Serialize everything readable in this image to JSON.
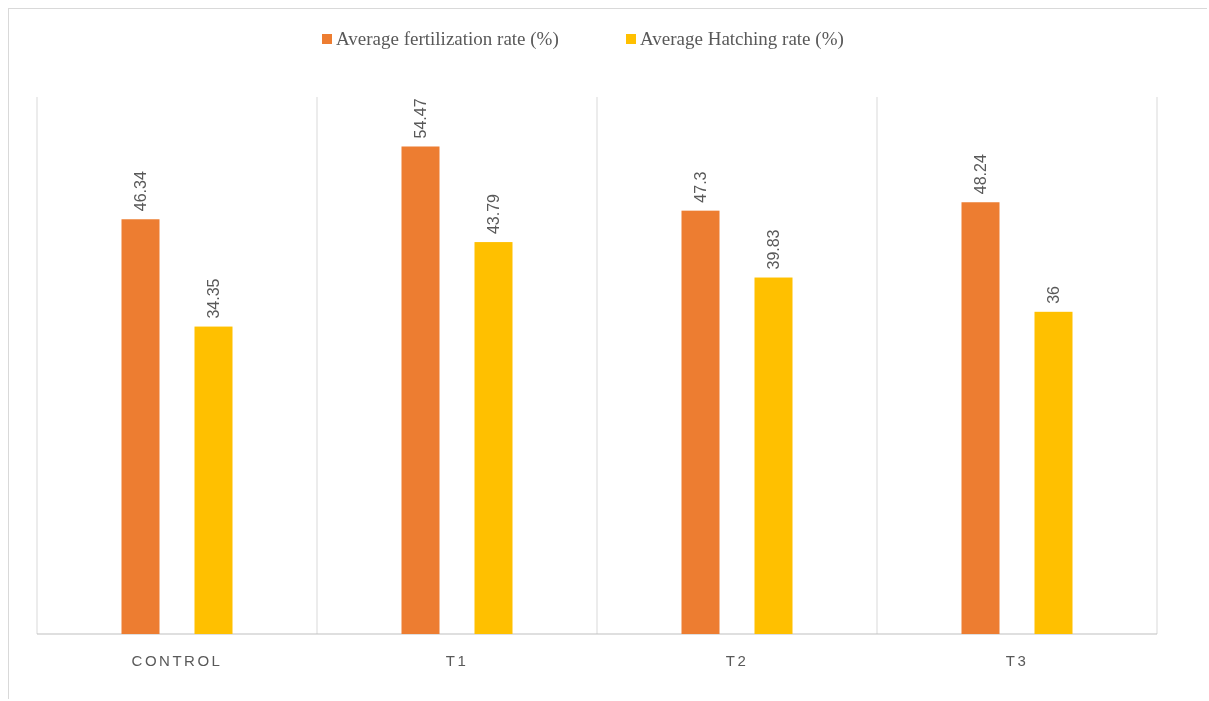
{
  "chart_data": {
    "type": "bar",
    "categories": [
      "CONTROL",
      "T1",
      "T2",
      "T3"
    ],
    "series": [
      {
        "name": "Average fertilization rate (%)",
        "color": "#ed7d31",
        "values": [
          46.34,
          54.47,
          47.3,
          48.24
        ]
      },
      {
        "name": "Average Hatching rate (%)",
        "color": "#ffc000",
        "values": [
          34.35,
          43.79,
          39.83,
          36
        ]
      }
    ],
    "ylim": [
      0,
      60
    ],
    "data_labels": true,
    "grid": "x",
    "legend": "top",
    "tick_labels": "x"
  }
}
